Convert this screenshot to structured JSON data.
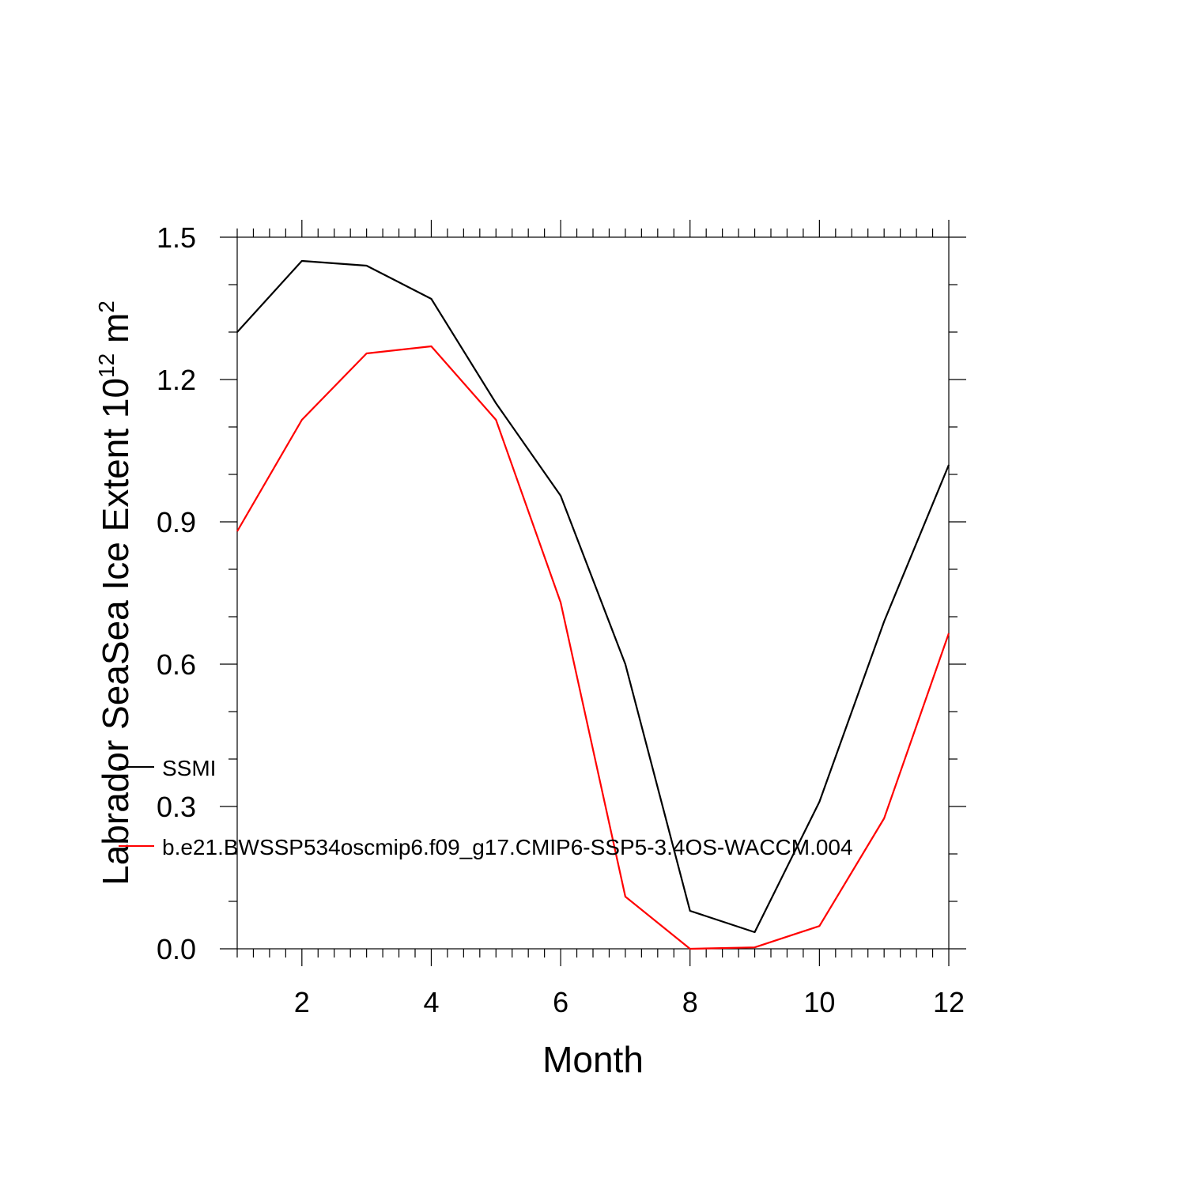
{
  "chart_data": {
    "type": "line",
    "title": "",
    "xlabel": "Month",
    "ylabel": {
      "main": "Labrador SeaSea Ice Extent 10",
      "superscript1": "12",
      "unit": " m",
      "superscript2": "2"
    },
    "xlim": [
      1,
      12
    ],
    "ylim": [
      0,
      1.5
    ],
    "xticks": [
      2,
      4,
      6,
      8,
      10,
      12
    ],
    "xtick_labels": [
      "2",
      "4",
      "6",
      "8",
      "10",
      "12"
    ],
    "yticks": [
      0,
      0.3,
      0.6,
      0.9,
      1.2,
      1.5
    ],
    "ytick_labels": [
      "0.0",
      "0.3",
      "0.6",
      "0.9",
      "1.2",
      "1.5"
    ],
    "grid": false,
    "legend_position": "bottom-left inside",
    "x": [
      1,
      2,
      3,
      4,
      5,
      6,
      7,
      8,
      9,
      10,
      11,
      12
    ],
    "series": [
      {
        "name": "SSMI",
        "color": "#000000",
        "values": [
          1.3,
          1.45,
          1.44,
          1.37,
          1.15,
          0.955,
          0.6,
          0.08,
          0.035,
          0.31,
          0.69,
          1.02
        ]
      },
      {
        "name": "b.e21.BWSSP534oscmip6.f09_g17.CMIP6-SSP5-3.4OS-WACCM.004",
        "color": "#ff0000",
        "values": [
          0.88,
          1.115,
          1.255,
          1.27,
          1.115,
          0.73,
          0.11,
          0.0,
          0.003,
          0.048,
          0.275,
          0.665
        ]
      }
    ]
  }
}
